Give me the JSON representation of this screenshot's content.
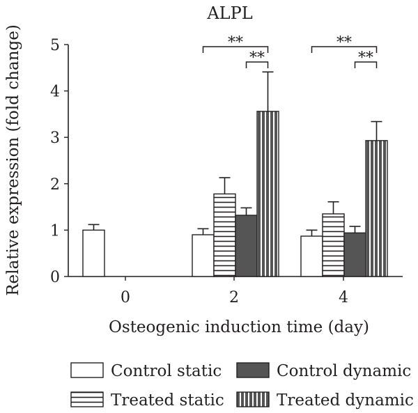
{
  "chart_data": {
    "type": "bar",
    "title": "ALPL",
    "xlabel": "Osteogenic induction time (day)",
    "ylabel": "Relative expression (fold change)",
    "ylim": [
      0,
      5
    ],
    "yticks": [
      "0",
      "1",
      "2",
      "3",
      "4",
      "5"
    ],
    "categories": [
      "0",
      "2",
      "4"
    ],
    "series": [
      {
        "name": "Control static",
        "pattern": "blank",
        "fill": "#ffffff",
        "values": [
          1.0,
          0.9,
          0.87
        ],
        "errors": [
          0.12,
          0.13,
          0.13
        ]
      },
      {
        "name": "Treated static",
        "pattern": "horizontal-lines",
        "fill": "#ffffff",
        "values": [
          null,
          1.78,
          1.35
        ],
        "errors": [
          null,
          0.35,
          0.26
        ]
      },
      {
        "name": "Control dynamic",
        "pattern": "solid",
        "fill": "#555555",
        "values": [
          null,
          1.32,
          0.94
        ],
        "errors": [
          null,
          0.16,
          0.14
        ]
      },
      {
        "name": "Treated dynamic",
        "pattern": "vertical-lines",
        "fill": "#555555",
        "values": [
          null,
          3.56,
          2.93
        ],
        "errors": [
          null,
          0.85,
          0.41
        ]
      }
    ],
    "significance": [
      {
        "category": "2",
        "from_series": 0,
        "to_series": 3,
        "label": "**"
      },
      {
        "category": "2",
        "from_series": 2,
        "to_series": 3,
        "label": "**"
      },
      {
        "category": "4",
        "from_series": 0,
        "to_series": 3,
        "label": "**"
      },
      {
        "category": "4",
        "from_series": 2,
        "to_series": 3,
        "label": "**"
      }
    ],
    "legend": {
      "position": "bottom",
      "items": [
        "Control static",
        "Control dynamic",
        "Treated static",
        "Treated dynamic"
      ]
    }
  }
}
